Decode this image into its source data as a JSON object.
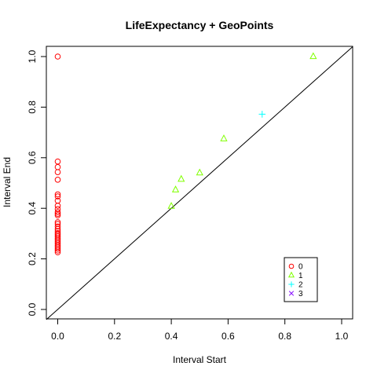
{
  "chart_data": {
    "type": "scatter",
    "title": "LifeExpectancy + GeoPoints",
    "xlabel": "Interval Start",
    "ylabel": "Interval End",
    "xlim": [
      0.0,
      1.0
    ],
    "ylim": [
      0.0,
      1.0
    ],
    "xticks": [
      "0.0",
      "0.2",
      "0.4",
      "0.6",
      "0.8",
      "1.0"
    ],
    "yticks": [
      "0.0",
      "0.2",
      "0.4",
      "0.6",
      "0.8",
      "1.0"
    ],
    "diagonal": true,
    "grid": false,
    "legend_position": "bottom-right",
    "series": [
      {
        "name": "0",
        "marker": "circle",
        "color": "#FF0000",
        "points": [
          [
            0,
            1.0
          ],
          [
            0,
            0.585
          ],
          [
            0,
            0.563
          ],
          [
            0,
            0.543
          ],
          [
            0,
            0.513
          ],
          [
            0,
            0.455
          ],
          [
            0,
            0.447
          ],
          [
            0,
            0.43
          ],
          [
            0,
            0.41
          ],
          [
            0,
            0.397
          ],
          [
            0,
            0.385
          ],
          [
            0,
            0.378
          ],
          [
            0,
            0.372
          ],
          [
            0,
            0.345
          ],
          [
            0,
            0.338
          ],
          [
            0,
            0.328
          ],
          [
            0,
            0.318
          ],
          [
            0,
            0.31
          ],
          [
            0,
            0.302
          ],
          [
            0,
            0.296
          ],
          [
            0,
            0.289
          ],
          [
            0,
            0.282
          ],
          [
            0,
            0.275
          ],
          [
            0,
            0.268
          ],
          [
            0,
            0.261
          ],
          [
            0,
            0.254
          ],
          [
            0,
            0.247
          ],
          [
            0,
            0.24
          ],
          [
            0,
            0.233
          ],
          [
            0,
            0.226
          ]
        ]
      },
      {
        "name": "1",
        "marker": "triangle",
        "color": "#80FF00",
        "points": [
          [
            0.4,
            0.408
          ],
          [
            0.415,
            0.473
          ],
          [
            0.435,
            0.515
          ],
          [
            0.5,
            0.54
          ],
          [
            0.585,
            0.675
          ],
          [
            0.9,
            1.0
          ]
        ]
      },
      {
        "name": "2",
        "marker": "plus",
        "color": "#00FFFF",
        "points": [
          [
            0.72,
            0.772
          ]
        ]
      },
      {
        "name": "3",
        "marker": "cross",
        "color": "#8000FF",
        "points": []
      }
    ]
  }
}
